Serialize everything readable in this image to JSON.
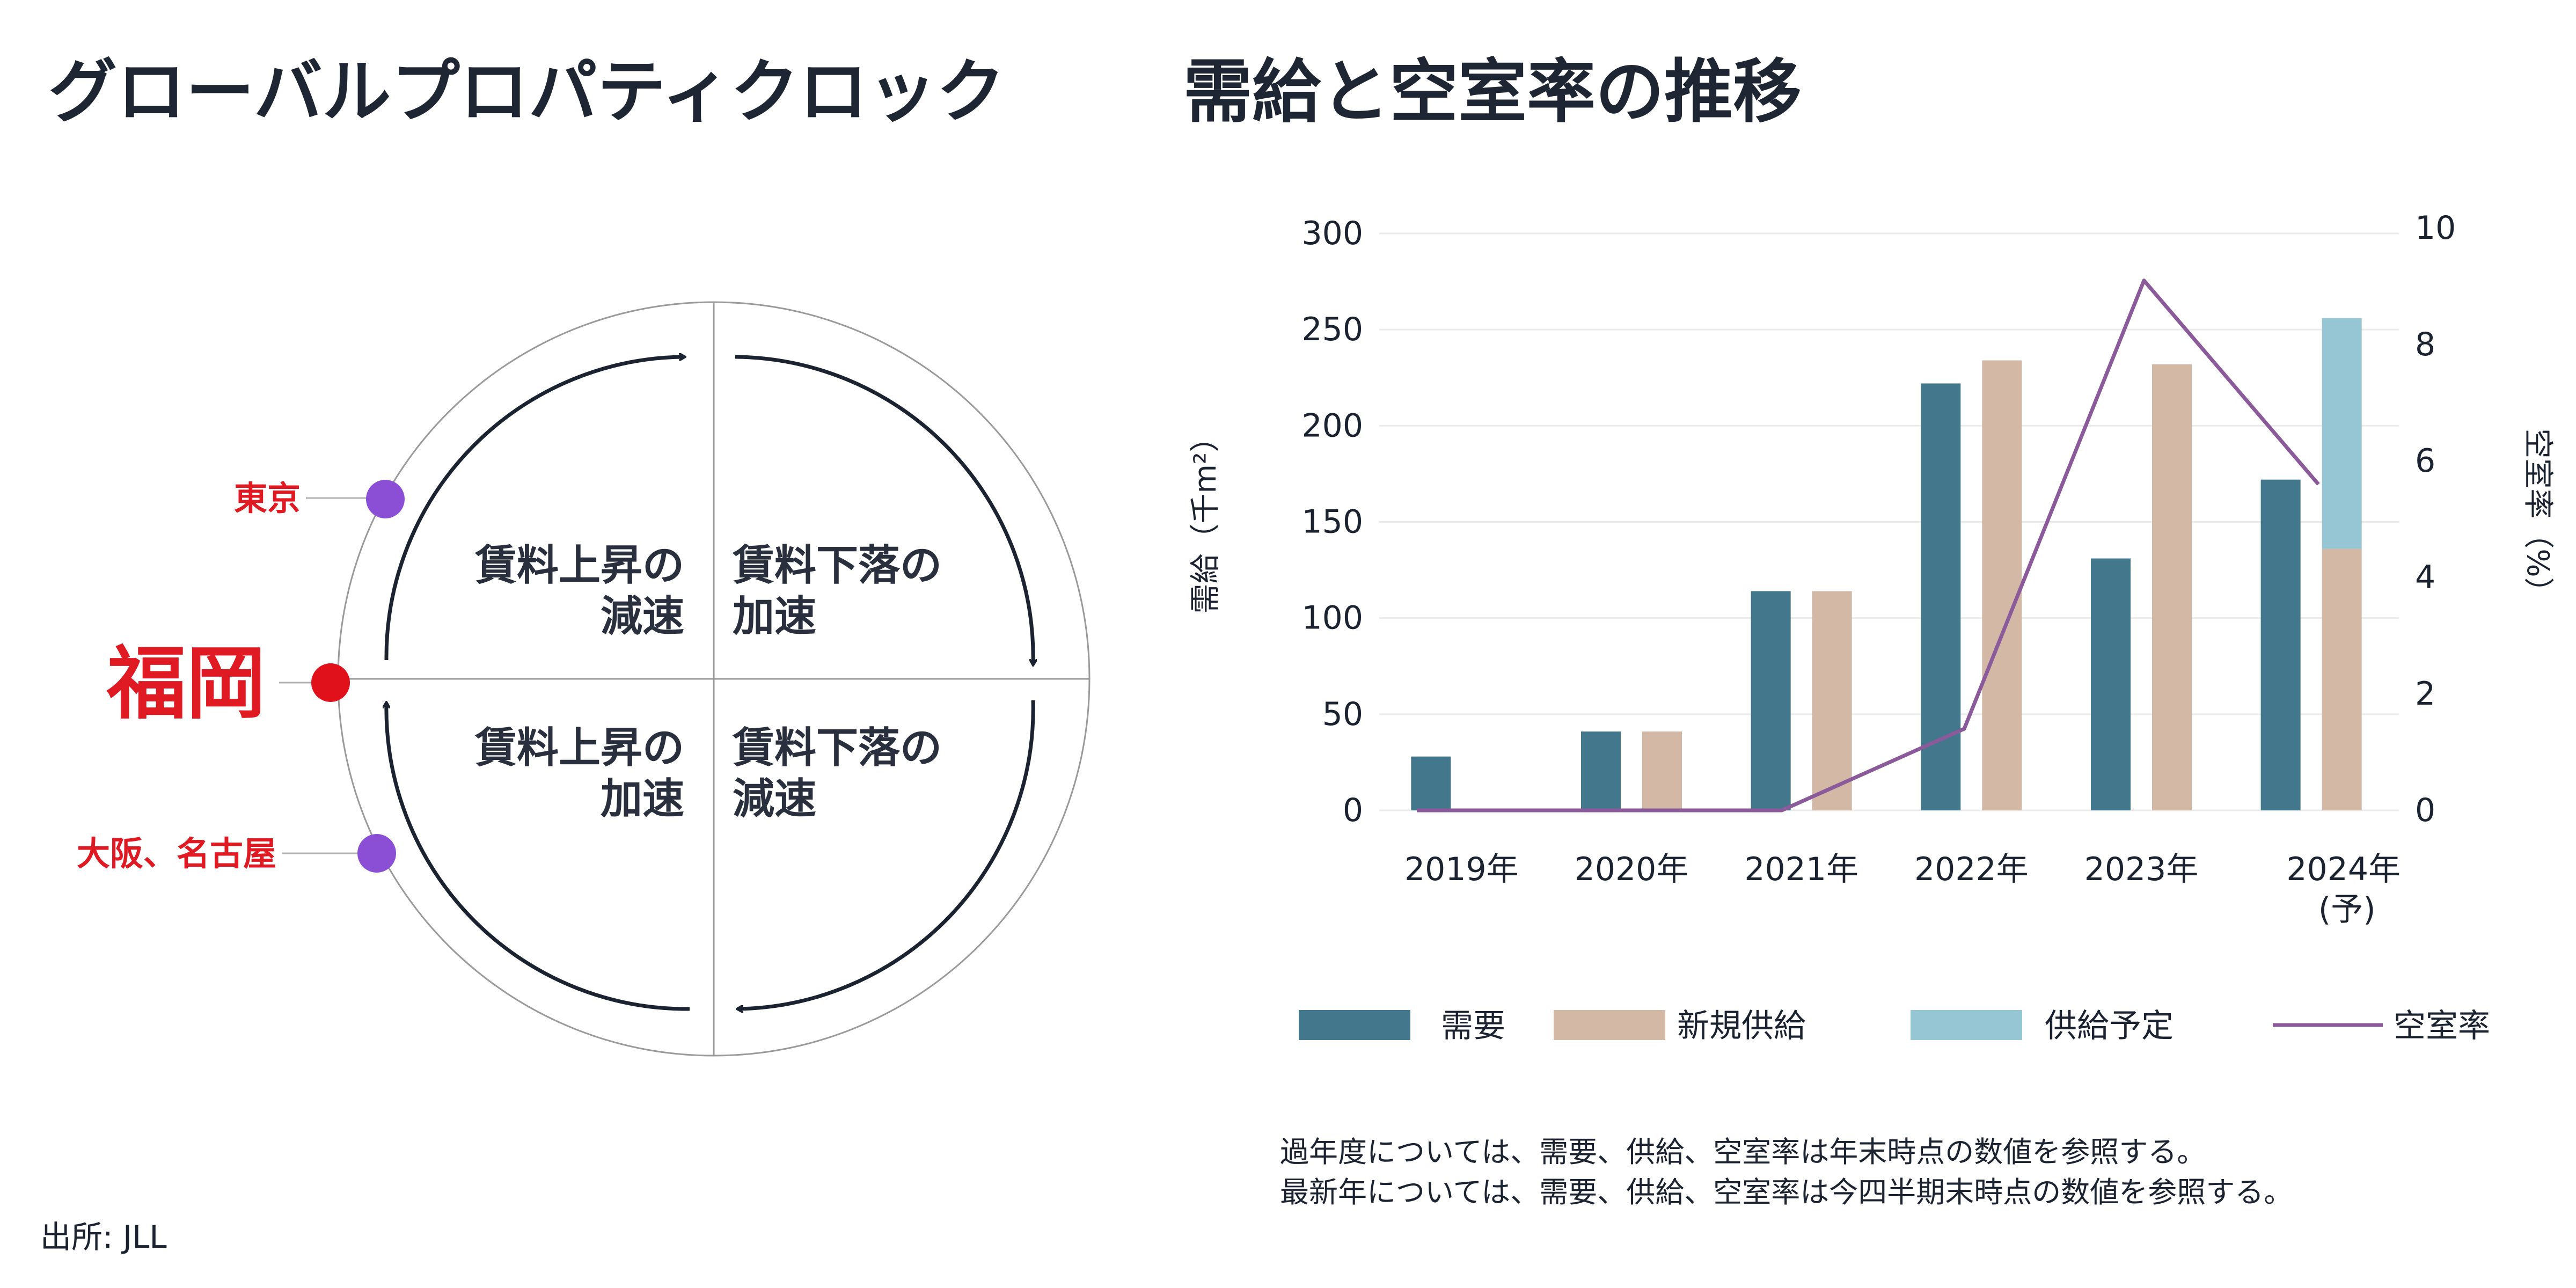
{
  "left": {
    "title": "グローバルプロパティクロック",
    "quadrants": {
      "top_left": [
        "賃料上昇の",
        "減速"
      ],
      "top_right": [
        "賃料下落の",
        "加速"
      ],
      "bottom_left": [
        "賃料上昇の",
        "加速"
      ],
      "bottom_right": [
        "賃料下落の",
        "減速"
      ]
    },
    "cities": [
      {
        "label": "東京",
        "color": "#8b4fd6"
      },
      {
        "label": "福岡",
        "color": "#e0111b"
      },
      {
        "label": "大阪、名古屋",
        "color": "#8b4fd6"
      }
    ],
    "source": "出所: JLL"
  },
  "right": {
    "title": "需給と空室率の推移",
    "notes": [
      "過年度については、需要、供給、空室率は年末時点の数値を参照する。",
      "最新年については、需要、供給、空室率は今四半期末時点の数値を参照する。"
    ]
  },
  "chart_data": {
    "type": "bar",
    "categories": [
      "2019年",
      "2020年",
      "2021年",
      "2022年",
      "2023年",
      "2024年(予)"
    ],
    "category_lines": [
      [
        "2019年"
      ],
      [
        "2020年"
      ],
      [
        "2021年"
      ],
      [
        "2022年"
      ],
      [
        "2023年"
      ],
      [
        "2024年",
        "(予)"
      ]
    ],
    "y_left_label": "需給（千m²）",
    "y_right_label": "空室率（%）",
    "y_left_ticks": [
      "0",
      "50",
      "100",
      "150",
      "200",
      "250",
      "300"
    ],
    "y_right_ticks": [
      "0",
      "2",
      "4",
      "6",
      "8",
      "10"
    ],
    "ylim_left": [
      0,
      300
    ],
    "ylim_right": [
      0,
      10
    ],
    "series": [
      {
        "name": "需要",
        "kind": "bar",
        "color": "#43788c",
        "values": [
          28,
          41,
          114,
          222,
          131,
          172
        ]
      },
      {
        "name": "新規供給",
        "kind": "bar",
        "color": "#d2b8a5",
        "values": [
          0,
          41,
          114,
          234,
          232,
          136
        ]
      },
      {
        "name": "供給予定",
        "kind": "bar-stack",
        "color": "#96c5d3",
        "values": [
          0,
          0,
          0,
          0,
          0,
          120
        ]
      },
      {
        "name": "空室率",
        "kind": "line",
        "axis": "right",
        "color": "#8a5a9a",
        "values": [
          0,
          0,
          0,
          1.4,
          9.1,
          5.6
        ]
      }
    ],
    "grid": true,
    "legend_position": "bottom"
  }
}
